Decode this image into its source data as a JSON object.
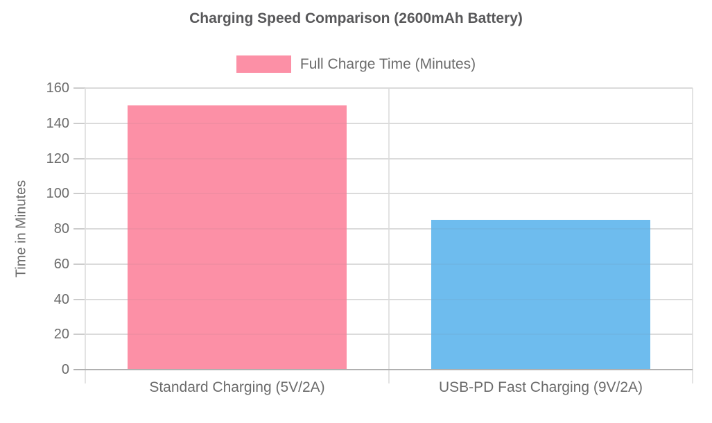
{
  "chart_data": {
    "type": "bar",
    "title": "Charging Speed Comparison (2600mAh Battery)",
    "categories": [
      "Standard Charging (5V/2A)",
      "USB-PD Fast Charging (9V/2A)"
    ],
    "series": [
      {
        "name": "Full Charge Time (Minutes)",
        "values": [
          150,
          85
        ],
        "colors": [
          "#FC90A6",
          "#6EBCEE"
        ]
      }
    ],
    "xlabel": "",
    "ylabel": "Time in Minutes",
    "ylim": [
      0,
      160
    ],
    "yticks": [
      0,
      20,
      40,
      60,
      80,
      100,
      120,
      140,
      160
    ],
    "grid": true,
    "legend_position": "top"
  },
  "legend": {
    "items": [
      {
        "label": "Full Charge Time (Minutes)",
        "color": "#FC90A6"
      }
    ]
  },
  "colors": {
    "background": "#FFFFFF",
    "title_text": "#58585A",
    "axis_text": "#6B6B6B",
    "gridline": "#E3E3E3",
    "axis_line": "#B0B0B0",
    "tick_mark": "#CCCCCC"
  }
}
